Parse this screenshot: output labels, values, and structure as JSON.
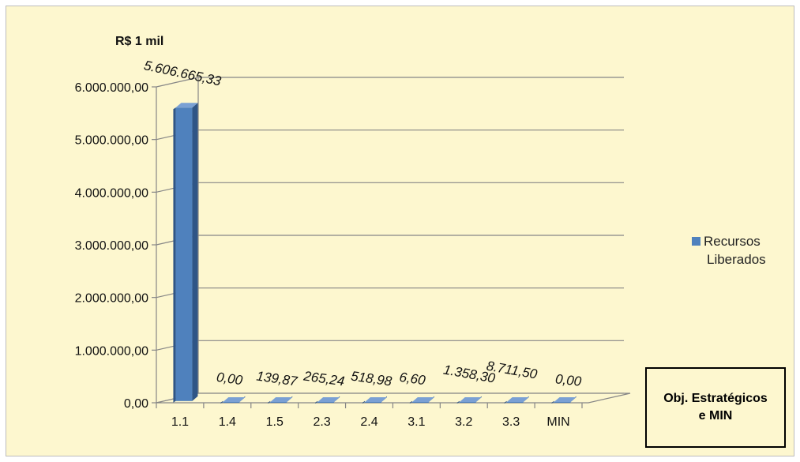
{
  "chart_data": {
    "type": "bar",
    "ylabel": "R$ 1 mil",
    "xlabel": "Obj. Estratégicos e MIN",
    "categories": [
      "1.1",
      "1.4",
      "1.5",
      "2.3",
      "2.4",
      "3.1",
      "3.2",
      "3.3",
      "MIN"
    ],
    "series": [
      {
        "name": "Recursos Liberados",
        "values": [
          5606665.33,
          0,
          139.87,
          265.24,
          518.98,
          6.6,
          1358.3,
          8711.5,
          0
        ],
        "labels": [
          "5.606.665,33",
          "0,00",
          "139,87",
          "265,24",
          "518,98",
          "6,60",
          "1.358,30",
          "8.711,50",
          "0,00"
        ]
      }
    ],
    "ylim": [
      0,
      6000000
    ],
    "yticks": [
      0,
      1000000,
      2000000,
      3000000,
      4000000,
      5000000,
      6000000
    ],
    "ytick_labels": [
      "0,00",
      "1.000.000,00",
      "2.000.000,00",
      "3.000.000,00",
      "4.000.000,00",
      "5.000.000,00",
      "6.000.000,00"
    ],
    "grid": true,
    "legend_position": "right",
    "bar_color": "#4f81bd",
    "bar_side_color": "#2f5586",
    "bar_top_color": "#7aa0d4"
  },
  "legend": {
    "line1": "Recursos",
    "line2": "Liberados"
  }
}
